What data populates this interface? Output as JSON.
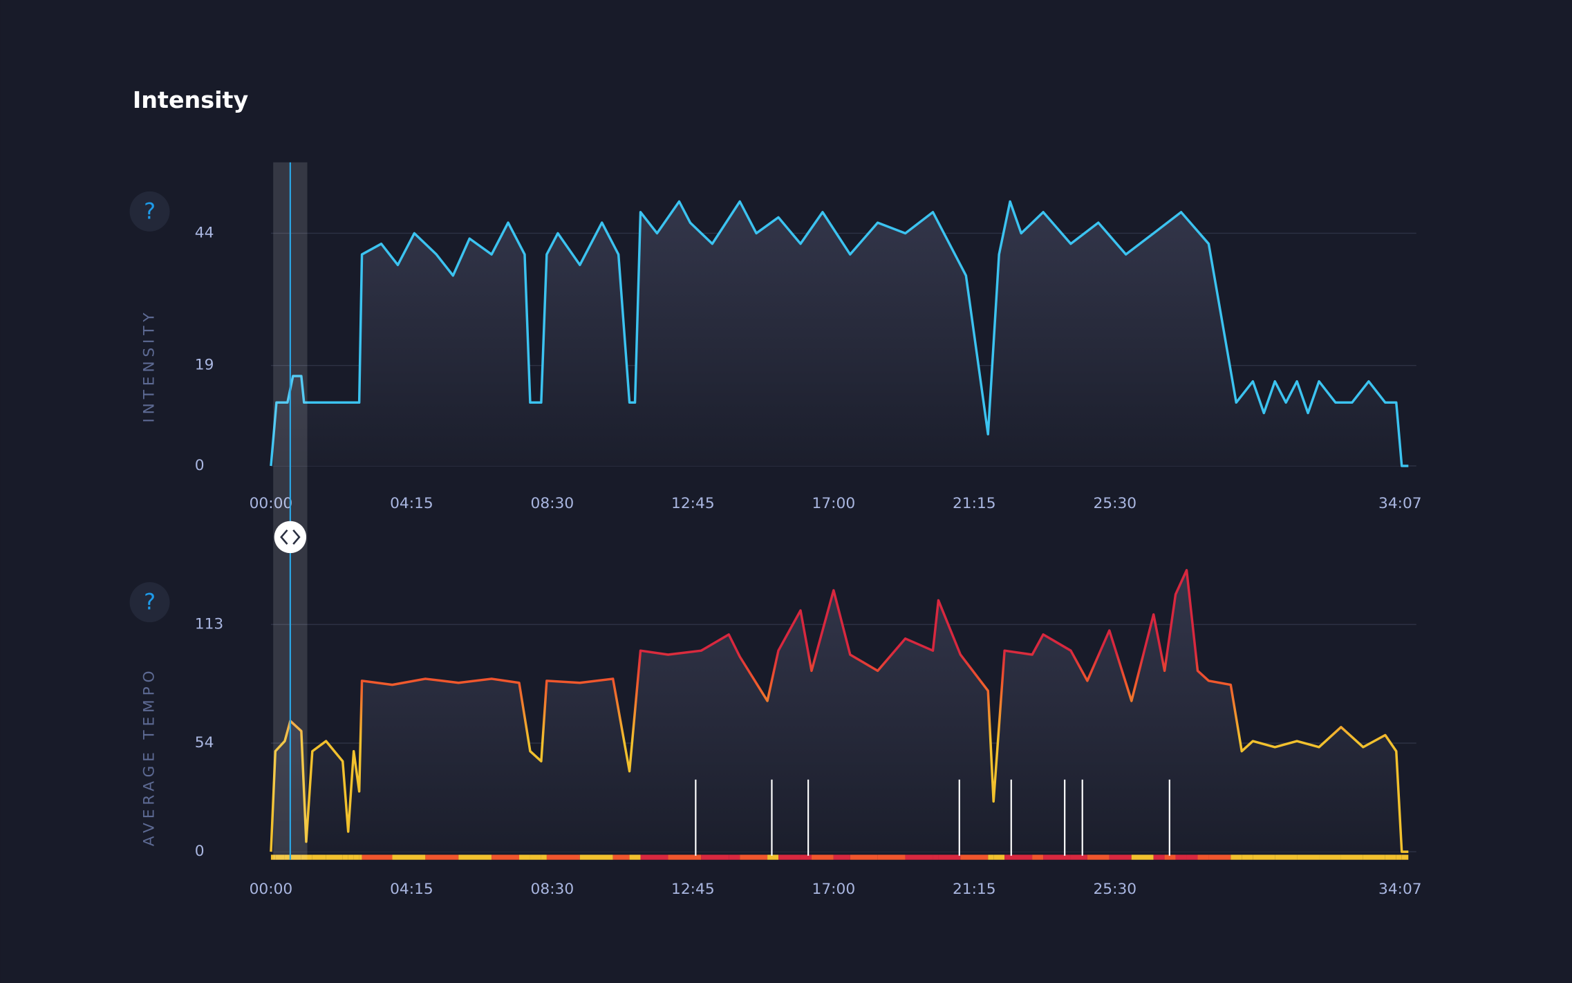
{
  "chart_data": [
    {
      "type": "line",
      "title": "Intensity",
      "help_label": "?",
      "y_label": "INTENSITY",
      "color": "#3cc3f0",
      "grid": true,
      "cursor": 35,
      "xlim": [
        0,
        2080
      ],
      "ylim": [
        0,
        54
      ],
      "yticks": [
        0,
        19,
        44
      ],
      "xticks": [
        {
          "value": 0,
          "label": "00:00"
        },
        {
          "value": 255,
          "label": "04:15"
        },
        {
          "value": 510,
          "label": "08:30"
        },
        {
          "value": 765,
          "label": "12:45"
        },
        {
          "value": 1020,
          "label": "17:00"
        },
        {
          "value": 1275,
          "label": "21:15"
        },
        {
          "value": 1530,
          "label": "25:30"
        },
        {
          "value": 2047,
          "label": "34:07"
        }
      ],
      "x": [
        0,
        10,
        30,
        40,
        55,
        60,
        160,
        165,
        200,
        230,
        260,
        300,
        330,
        360,
        400,
        430,
        460,
        470,
        490,
        500,
        520,
        560,
        600,
        630,
        650,
        660,
        670,
        700,
        740,
        760,
        800,
        850,
        880,
        920,
        960,
        1000,
        1050,
        1100,
        1150,
        1200,
        1260,
        1300,
        1320,
        1340,
        1360,
        1400,
        1450,
        1500,
        1550,
        1600,
        1650,
        1700,
        1750,
        1780,
        1800,
        1820,
        1840,
        1860,
        1880,
        1900,
        1930,
        1960,
        1990,
        2020,
        2040,
        2050,
        2062
      ],
      "values": [
        0,
        12,
        12,
        17,
        17,
        12,
        12,
        40,
        42,
        38,
        44,
        40,
        36,
        43,
        40,
        46,
        40,
        12,
        12,
        40,
        44,
        38,
        46,
        40,
        12,
        12,
        48,
        44,
        50,
        46,
        42,
        50,
        44,
        47,
        42,
        48,
        40,
        46,
        44,
        48,
        36,
        6,
        40,
        50,
        44,
        48,
        42,
        46,
        40,
        44,
        48,
        42,
        12,
        16,
        10,
        16,
        12,
        16,
        10,
        16,
        12,
        12,
        16,
        12,
        12,
        0,
        0
      ]
    },
    {
      "type": "line",
      "help_label": "?",
      "y_label": "AVERAGE TEMPO",
      "grid": true,
      "cursor": 35,
      "color_stops": [
        {
          "value": 55,
          "color": "#f2c12e"
        },
        {
          "value": 85,
          "color": "#f0562d"
        },
        {
          "value": 100,
          "color": "#d8283f"
        }
      ],
      "markers": [
        770,
        908,
        974,
        1248,
        1342,
        1439,
        1471,
        1629
      ],
      "xlim": [
        0,
        2080
      ],
      "ylim": [
        0,
        143
      ],
      "yticks": [
        0,
        54,
        113
      ],
      "xticks": [
        {
          "value": 0,
          "label": "00:00"
        },
        {
          "value": 255,
          "label": "04:15"
        },
        {
          "value": 510,
          "label": "08:30"
        },
        {
          "value": 765,
          "label": "12:45"
        },
        {
          "value": 1020,
          "label": "17:00"
        },
        {
          "value": 1275,
          "label": "21:15"
        },
        {
          "value": 1530,
          "label": "25:30"
        },
        {
          "value": 2047,
          "label": "34:07"
        }
      ],
      "x": [
        0,
        8,
        25,
        35,
        55,
        64,
        75,
        100,
        130,
        140,
        150,
        160,
        165,
        220,
        280,
        340,
        400,
        450,
        470,
        490,
        500,
        560,
        620,
        650,
        670,
        720,
        780,
        830,
        850,
        900,
        920,
        960,
        980,
        1020,
        1050,
        1100,
        1150,
        1200,
        1210,
        1250,
        1300,
        1310,
        1330,
        1380,
        1400,
        1450,
        1480,
        1520,
        1560,
        1600,
        1620,
        1640,
        1660,
        1680,
        1700,
        1740,
        1760,
        1780,
        1820,
        1860,
        1900,
        1940,
        1980,
        2020,
        2040,
        2050,
        2062
      ],
      "values": [
        0,
        50,
        55,
        65,
        60,
        5,
        50,
        55,
        45,
        10,
        50,
        30,
        85,
        83,
        86,
        84,
        86,
        84,
        50,
        45,
        85,
        84,
        86,
        40,
        100,
        98,
        100,
        108,
        97,
        75,
        100,
        120,
        90,
        130,
        98,
        90,
        106,
        100,
        125,
        98,
        80,
        25,
        100,
        98,
        108,
        100,
        85,
        110,
        75,
        118,
        90,
        128,
        140,
        90,
        85,
        83,
        50,
        55,
        52,
        55,
        52,
        62,
        52,
        58,
        50,
        0,
        0
      ]
    }
  ]
}
